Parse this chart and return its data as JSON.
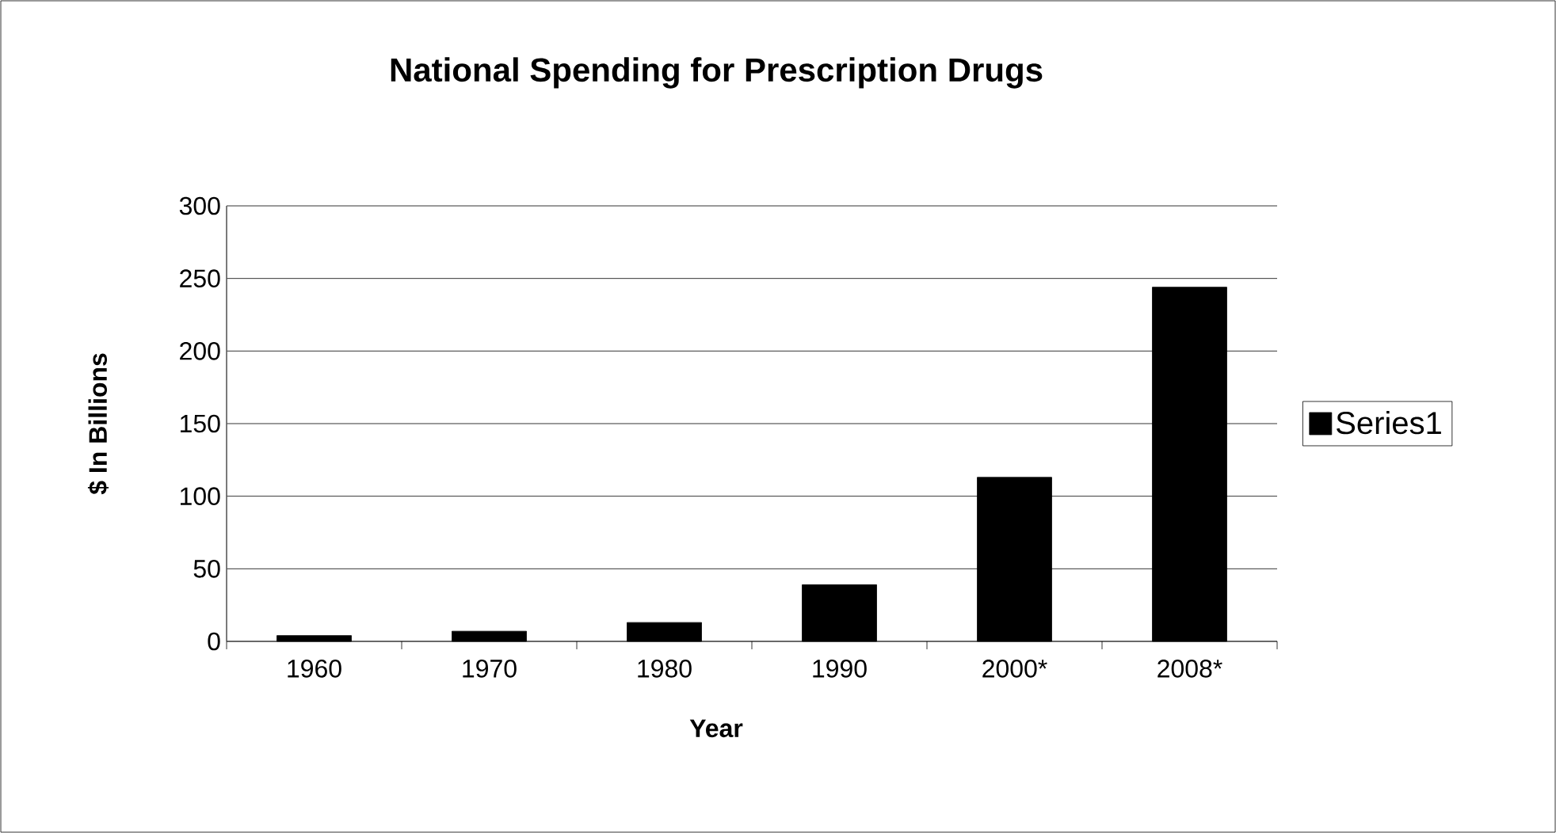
{
  "chart_data": {
    "type": "bar",
    "title": "National Spending for Prescription Drugs",
    "xlabel": "Year",
    "ylabel": "$ In Billions",
    "categories": [
      "1960",
      "1970",
      "1980",
      "1990",
      "2000*",
      "2008*"
    ],
    "series": [
      {
        "name": "Series1",
        "color": "#000000",
        "values": [
          4,
          7,
          13,
          39,
          113,
          244
        ]
      }
    ],
    "ylim": [
      0,
      300
    ],
    "yticks": [
      0,
      50,
      100,
      150,
      200,
      250,
      300
    ],
    "grid": "y",
    "legend": "right"
  }
}
